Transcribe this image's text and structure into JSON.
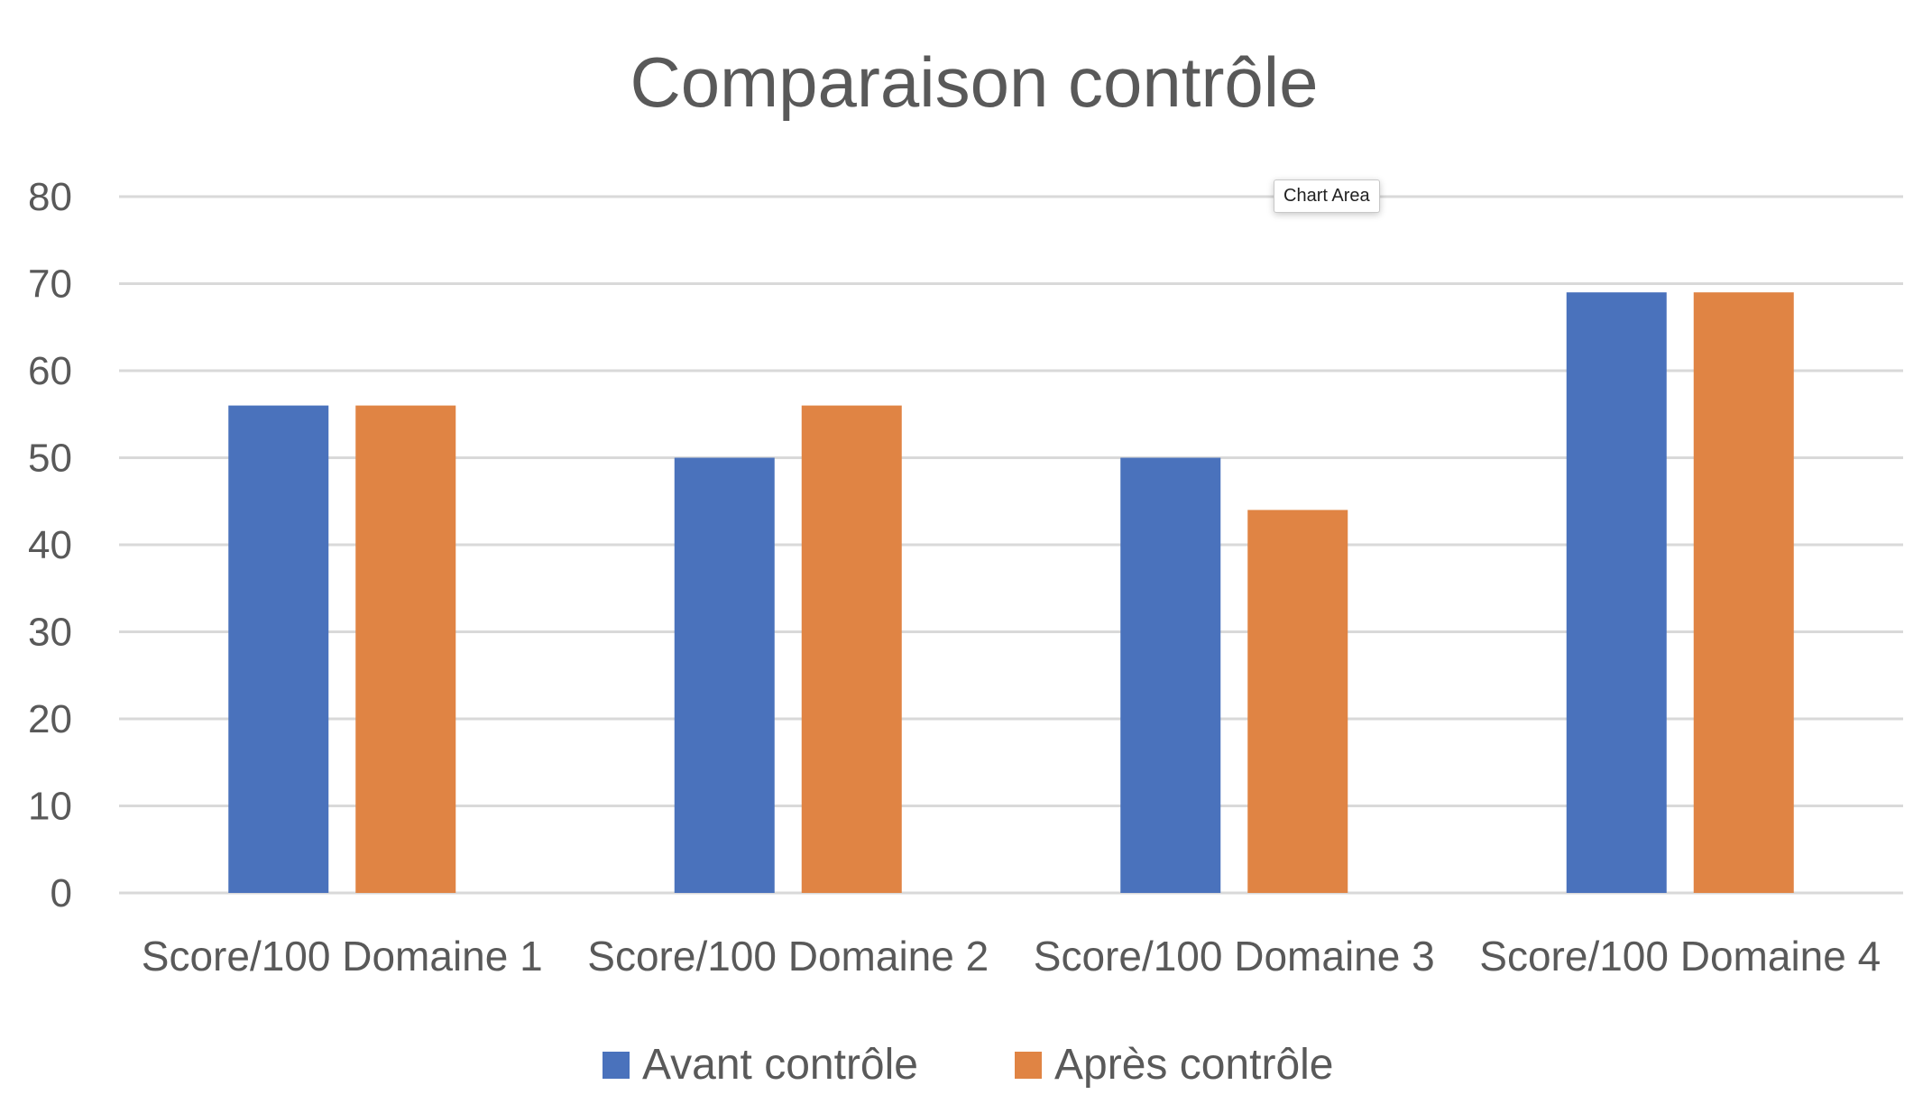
{
  "chart_data": {
    "type": "bar",
    "title": "Comparaison contrôle",
    "categories": [
      "Score/100 Domaine 1",
      "Score/100 Domaine 2",
      "Score/100 Domaine 3",
      "Score/100 Domaine 4"
    ],
    "series": [
      {
        "name": "Avant contrôle",
        "color": "#4a72bc",
        "values": [
          56,
          50,
          50,
          69
        ]
      },
      {
        "name": "Après contrôle",
        "color": "#e08444",
        "values": [
          56,
          56,
          44,
          69
        ]
      }
    ],
    "ylim": [
      0,
      80
    ],
    "yticks": [
      0,
      10,
      20,
      30,
      40,
      50,
      60,
      70,
      80
    ],
    "grid": true,
    "legend_position": "bottom"
  },
  "tooltip": {
    "label": "Chart Area"
  },
  "colors": {
    "text": "#595959",
    "grid": "#d9d9d9",
    "background": "#ffffff"
  }
}
